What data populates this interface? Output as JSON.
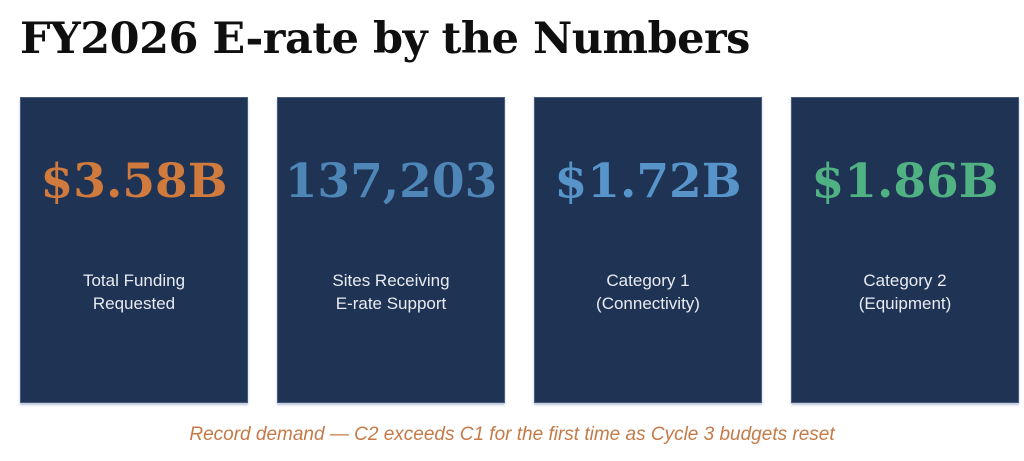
{
  "page": {
    "title": "FY2026 E-rate by the Numbers",
    "caption": "Record demand — C2 exceeds C1 for the first time as Cycle 3 budgets reset"
  },
  "colors": {
    "background": "#ffffff",
    "card_background": "#1f3354",
    "title_text": "#0f0f0f",
    "label_text": "#e8ebf1",
    "caption_text": "#c57a48",
    "stat_orange": "#d07a3d",
    "stat_blue": "#4e86b8",
    "stat_light_blue": "#5794ca",
    "stat_green": "#50b183"
  },
  "cards": [
    {
      "value": "$3.58B",
      "label": "Total Funding\nRequested",
      "color": "#d07a3d"
    },
    {
      "value": "137,203",
      "label": "Sites Receiving\nE-rate Support",
      "color": "#4e86b8"
    },
    {
      "value": "$1.72B",
      "label": "Category 1\n(Connectivity)",
      "color": "#5794ca"
    },
    {
      "value": "$1.86B",
      "label": "Category 2\n(Equipment)",
      "color": "#50b183"
    }
  ],
  "chart_data": {
    "type": "table",
    "title": "FY2026 E-rate by the Numbers",
    "items": [
      {
        "label": "Total Funding Requested",
        "value": "$3.58B",
        "numeric_value": 3.58,
        "unit": "billion USD"
      },
      {
        "label": "Sites Receiving E-rate Support",
        "value": "137,203",
        "numeric_value": 137203,
        "unit": "sites"
      },
      {
        "label": "Category 1 (Connectivity)",
        "value": "$1.72B",
        "numeric_value": 1.72,
        "unit": "billion USD"
      },
      {
        "label": "Category 2 (Equipment)",
        "value": "$1.86B",
        "numeric_value": 1.86,
        "unit": "billion USD"
      }
    ],
    "annotation": "Record demand — C2 exceeds C1 for the first time as Cycle 3 budgets reset"
  }
}
